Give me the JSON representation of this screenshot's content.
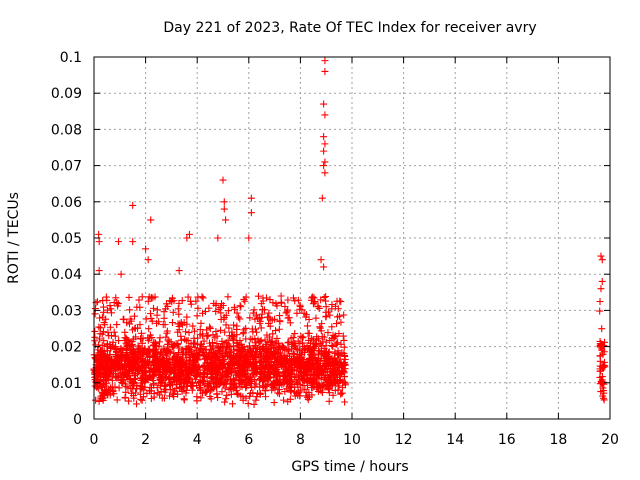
{
  "chart_data": {
    "type": "scatter",
    "title": "Day 221 of 2023, Rate Of TEC Index for receiver avry",
    "xlabel": "GPS time / hours",
    "ylabel": "ROTI / TECUs",
    "xlim": [
      0,
      20
    ],
    "ylim": [
      0,
      0.1
    ],
    "grid": true,
    "marker": "+",
    "series_color": "#ff0000",
    "xticks": [
      0,
      2,
      4,
      6,
      8,
      10,
      12,
      14,
      16,
      18,
      20
    ],
    "xtick_labels": [
      "0",
      "2",
      "4",
      "6",
      "8",
      "10",
      "12",
      "14",
      "16",
      "18",
      "20"
    ],
    "yticks": [
      0,
      0.01,
      0.02,
      0.03,
      0.04,
      0.05,
      0.06,
      0.07,
      0.08,
      0.09,
      0.1
    ],
    "ytick_labels": [
      "0",
      "0.01",
      "0.02",
      "0.03",
      "0.04",
      "0.05",
      "0.06",
      "0.07",
      "0.08",
      "0.09",
      "0.1"
    ],
    "data_segments": [
      {
        "t_start": 0.0,
        "t_end": 9.75,
        "typical_min": 0.005,
        "typical_max": 0.03,
        "median": 0.014
      },
      {
        "t_start": 19.6,
        "t_end": 19.8,
        "typical_min": 0.005,
        "typical_max": 0.03,
        "median": 0.013
      }
    ],
    "notable_points": [
      {
        "x": 0.18,
        "y": 0.051
      },
      {
        "x": 0.2,
        "y": 0.049
      },
      {
        "x": 0.2,
        "y": 0.041
      },
      {
        "x": 0.95,
        "y": 0.049
      },
      {
        "x": 1.05,
        "y": 0.04
      },
      {
        "x": 1.5,
        "y": 0.059
      },
      {
        "x": 1.5,
        "y": 0.049
      },
      {
        "x": 2.0,
        "y": 0.047
      },
      {
        "x": 2.1,
        "y": 0.044
      },
      {
        "x": 2.2,
        "y": 0.055
      },
      {
        "x": 3.3,
        "y": 0.041
      },
      {
        "x": 3.6,
        "y": 0.05
      },
      {
        "x": 3.7,
        "y": 0.051
      },
      {
        "x": 4.8,
        "y": 0.05
      },
      {
        "x": 5.0,
        "y": 0.066
      },
      {
        "x": 5.05,
        "y": 0.06
      },
      {
        "x": 5.05,
        "y": 0.058
      },
      {
        "x": 5.1,
        "y": 0.055
      },
      {
        "x": 6.1,
        "y": 0.061
      },
      {
        "x": 6.1,
        "y": 0.057
      },
      {
        "x": 6.0,
        "y": 0.05
      },
      {
        "x": 8.85,
        "y": 0.061
      },
      {
        "x": 8.95,
        "y": 0.099
      },
      {
        "x": 8.95,
        "y": 0.096
      },
      {
        "x": 8.9,
        "y": 0.087
      },
      {
        "x": 8.95,
        "y": 0.084
      },
      {
        "x": 8.9,
        "y": 0.078
      },
      {
        "x": 8.95,
        "y": 0.076
      },
      {
        "x": 8.9,
        "y": 0.074
      },
      {
        "x": 8.95,
        "y": 0.071
      },
      {
        "x": 8.9,
        "y": 0.07
      },
      {
        "x": 8.95,
        "y": 0.068
      },
      {
        "x": 8.8,
        "y": 0.044
      },
      {
        "x": 8.9,
        "y": 0.042
      },
      {
        "x": 19.65,
        "y": 0.045
      },
      {
        "x": 19.7,
        "y": 0.044
      },
      {
        "x": 19.7,
        "y": 0.038
      },
      {
        "x": 19.65,
        "y": 0.036
      }
    ]
  }
}
